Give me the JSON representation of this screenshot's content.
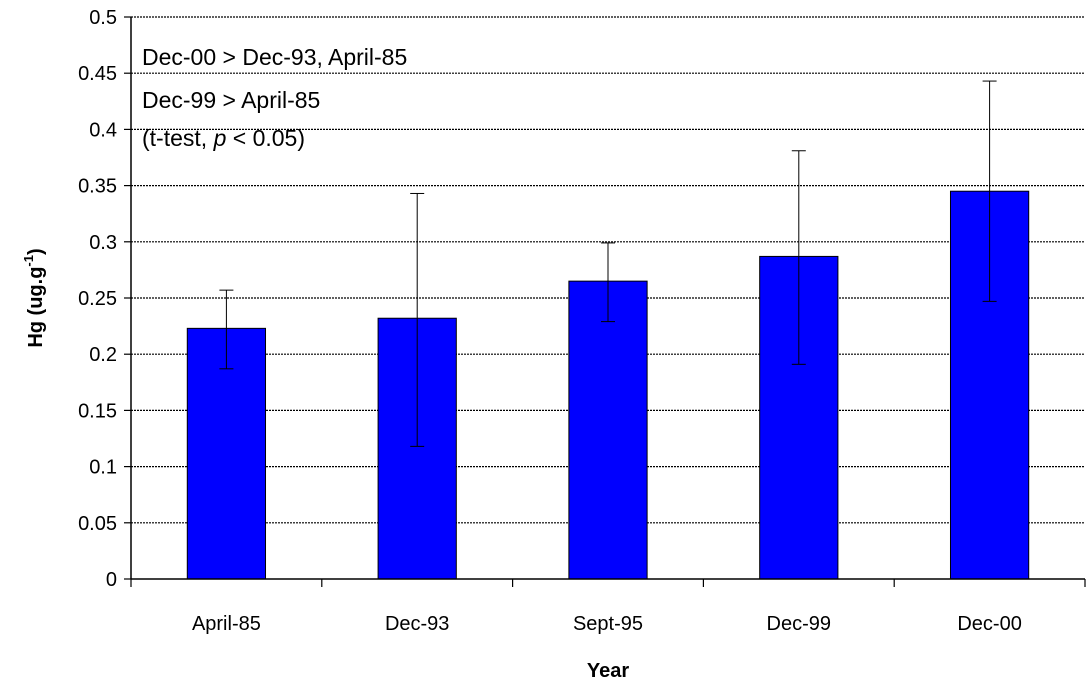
{
  "chart_data": {
    "type": "bar",
    "categories": [
      "April-85",
      "Dec-93",
      "Sept-95",
      "Dec-99",
      "Dec-00"
    ],
    "series": [
      {
        "values": [
          0.223,
          0.232,
          0.265,
          0.287,
          0.345
        ],
        "error_low": [
          0.187,
          0.118,
          0.229,
          0.191,
          0.247
        ],
        "error_high": [
          0.257,
          0.343,
          0.299,
          0.381,
          0.443
        ],
        "color": "#0000ff"
      }
    ],
    "xlabel": "Year",
    "ylabel": {
      "main": "Hg (ug.g",
      "sup": "-1",
      "tail": ")"
    },
    "ylim": [
      0,
      0.5
    ],
    "yticks": [
      "0",
      "0.05",
      "0.1",
      "0.15",
      "0.2",
      "0.25",
      "0.3",
      "0.35",
      "0.4",
      "0.45",
      "0.5"
    ],
    "grid": true,
    "annotations": {
      "line1": "Dec-00 > Dec-93, April-85",
      "line2": "Dec-99 > April-85",
      "line3_prefix": "(t-test, ",
      "line3_italic": "p",
      "line3_suffix": " < 0.05)"
    }
  }
}
